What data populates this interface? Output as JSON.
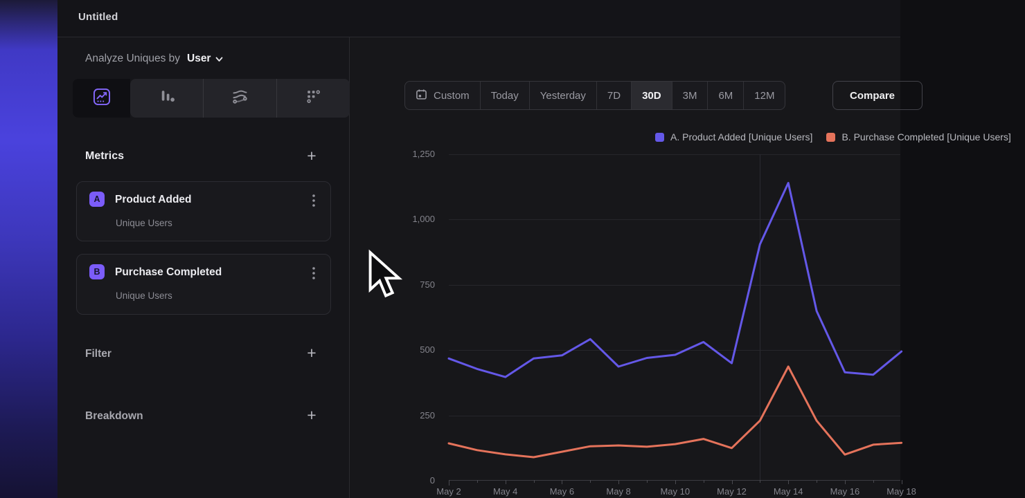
{
  "window": {
    "title": "Untitled"
  },
  "sidebar": {
    "analyze_label": "Analyze Uniques by",
    "analyze_value": "User",
    "metrics": {
      "title": "Metrics",
      "add_label": "+",
      "items": [
        {
          "badge": "A",
          "name": "Product Added",
          "subtitle": "Unique Users"
        },
        {
          "badge": "B",
          "name": "Purchase Completed",
          "subtitle": "Unique Users"
        }
      ]
    },
    "filter": {
      "title": "Filter",
      "add_label": "+"
    },
    "breakdown": {
      "title": "Breakdown",
      "add_label": "+"
    }
  },
  "toolbar": {
    "ranges": [
      "Custom",
      "Today",
      "Yesterday",
      "7D",
      "30D",
      "3M",
      "6M",
      "12M"
    ],
    "selected_range": "30D",
    "compare_label": "Compare"
  },
  "chart_data": {
    "type": "line",
    "title": "",
    "x": [
      "May 2",
      "May 3",
      "May 4",
      "May 5",
      "May 6",
      "May 7",
      "May 8",
      "May 9",
      "May 10",
      "May 11",
      "May 12",
      "May 13",
      "May 14",
      "May 15",
      "May 16",
      "May 17",
      "May 18"
    ],
    "x_label_every": 2,
    "series": [
      {
        "name": "A. Product Added [Unique Users]",
        "color": "#6458e8",
        "values": [
          468,
          428,
          397,
          468,
          480,
          542,
          437,
          470,
          482,
          531,
          450,
          905,
          1140,
          650,
          415,
          406,
          495
        ]
      },
      {
        "name": "B. Purchase Completed [Unique Users]",
        "color": "#e5735b",
        "values": [
          143,
          117,
          101,
          90,
          111,
          132,
          135,
          130,
          140,
          160,
          125,
          230,
          437,
          230,
          100,
          138,
          145
        ]
      }
    ],
    "ylim": [
      0,
      1250
    ],
    "yticks": [
      0,
      250,
      500,
      750,
      1000,
      1250
    ],
    "ytick_labels": [
      "0",
      "250",
      "500",
      "750",
      "1,000",
      "1,250"
    ],
    "grid": "horizontal",
    "vline_at": "May 13",
    "legend_position": "top-right"
  }
}
